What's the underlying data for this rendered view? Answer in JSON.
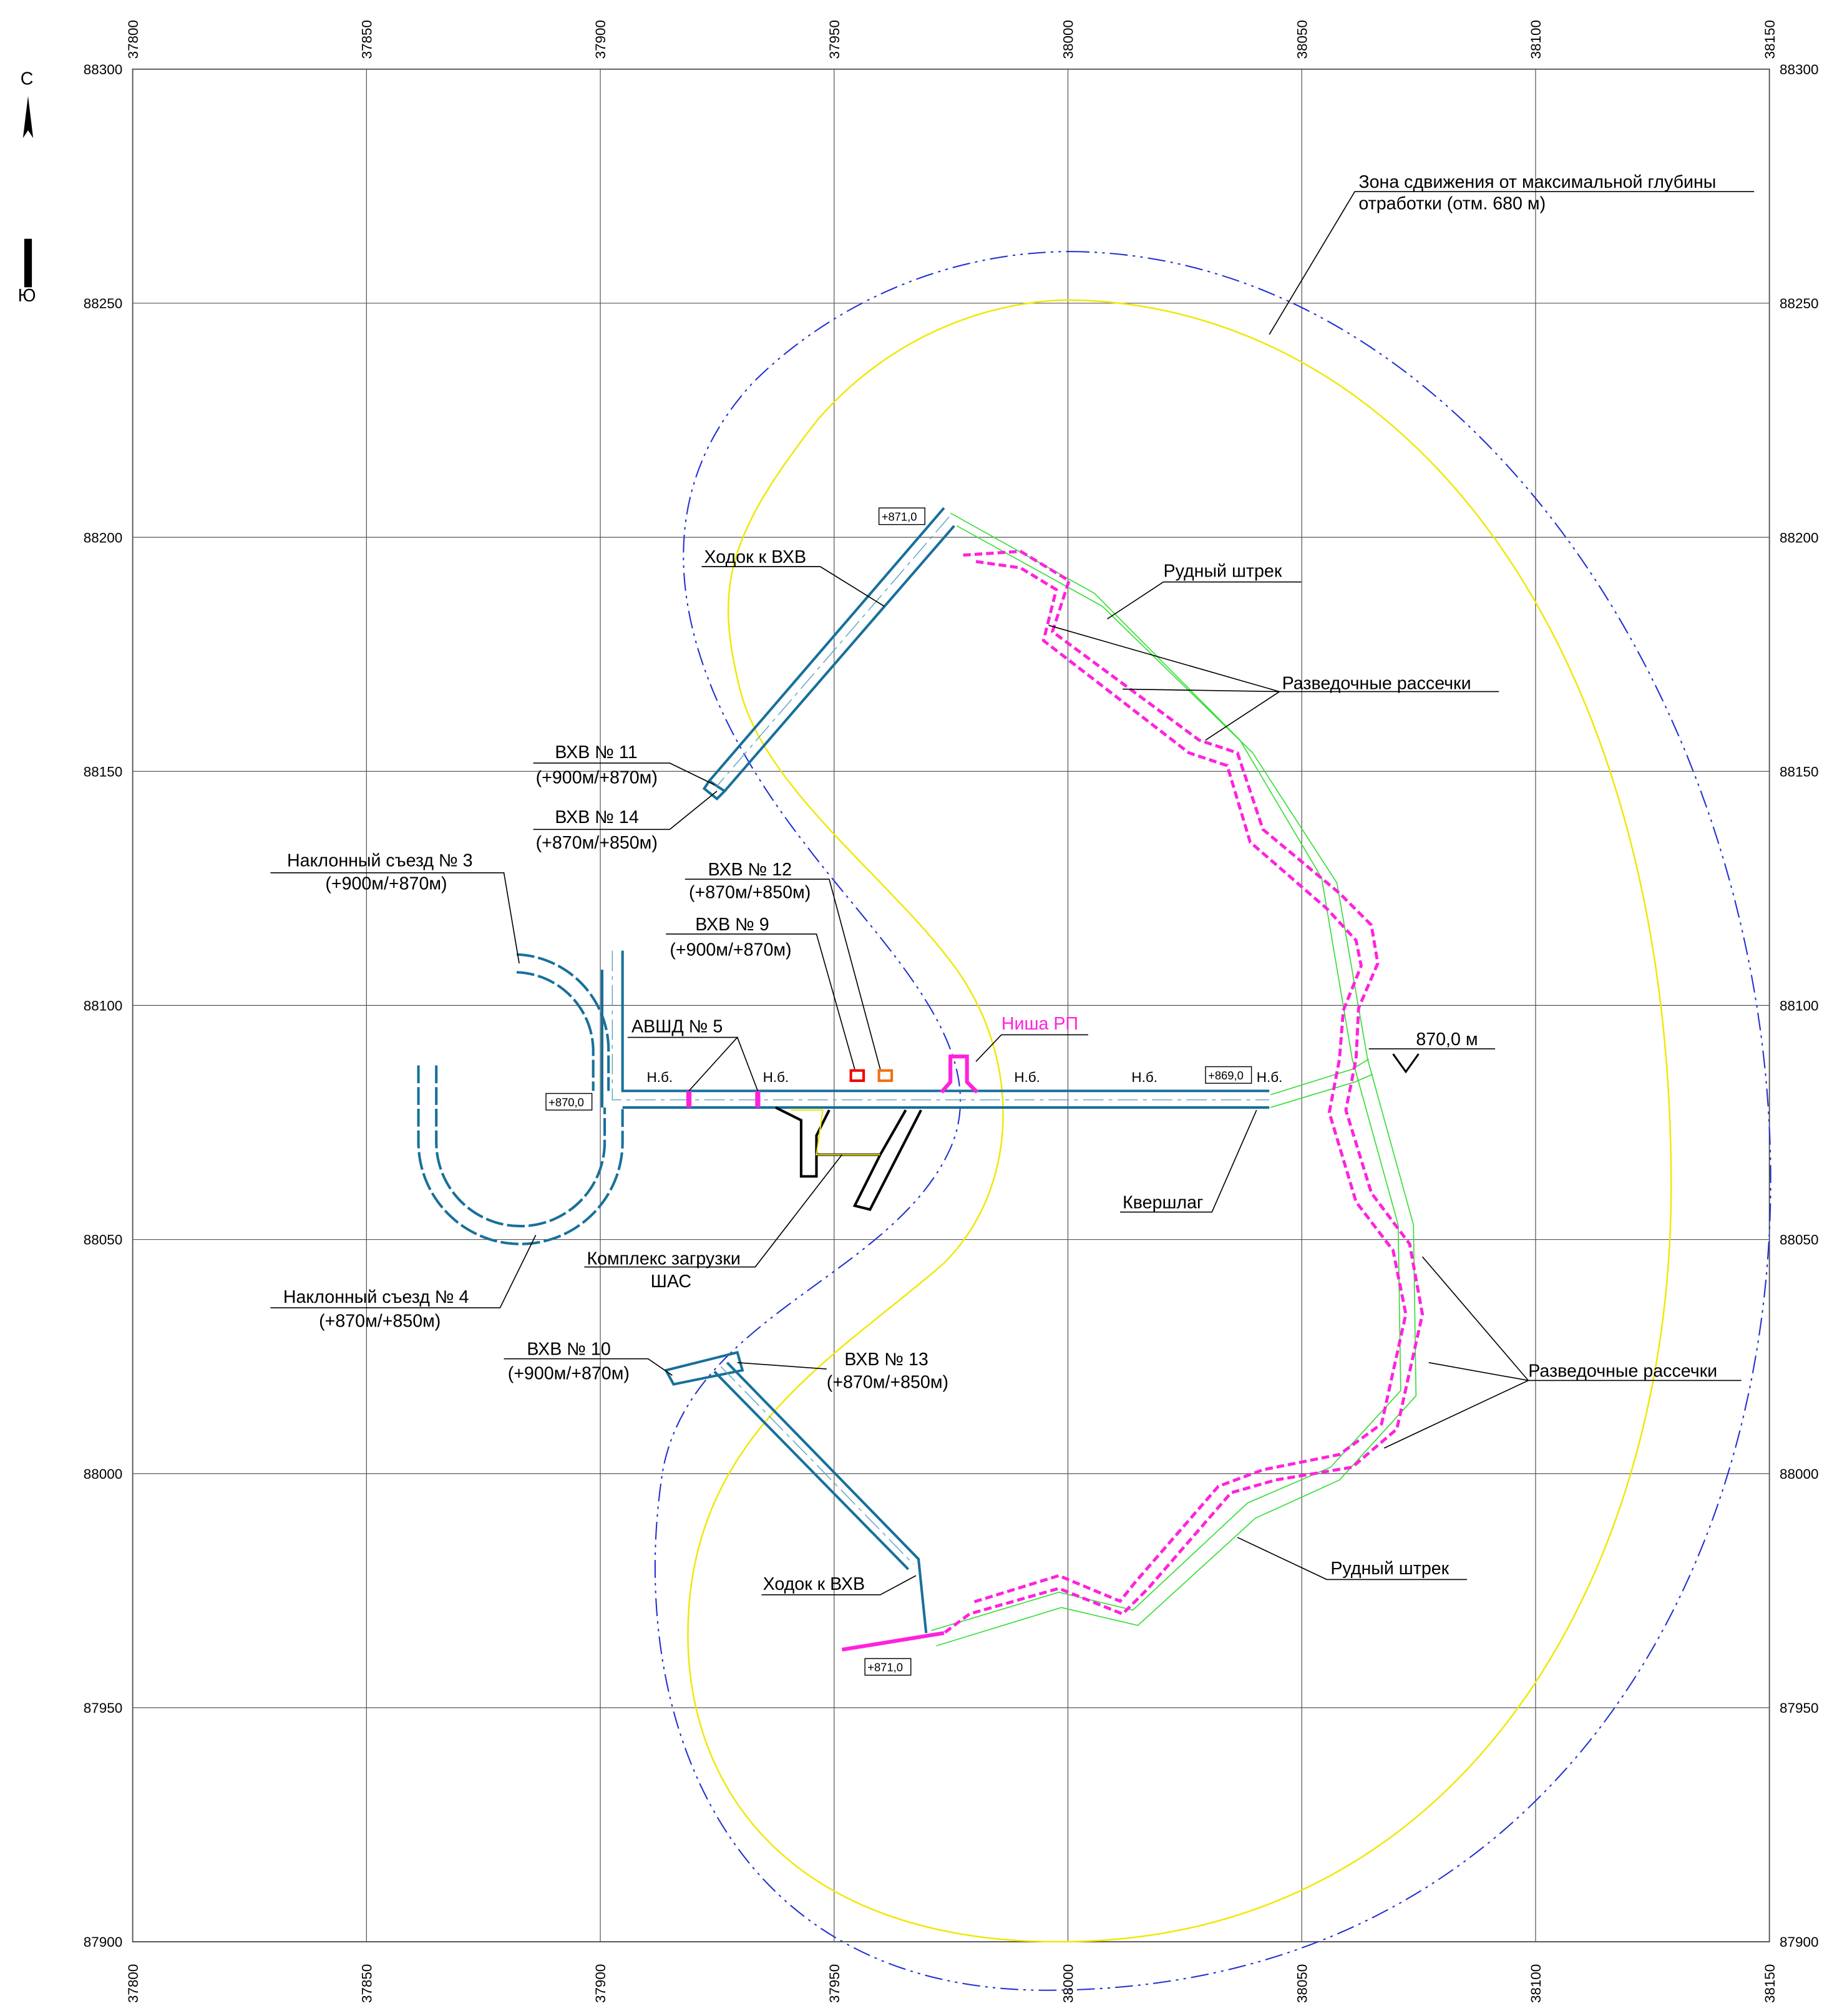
{
  "axes": {
    "xlim": [
      37800,
      38150
    ],
    "ylim": [
      87900,
      88300
    ],
    "xticks": [
      37800,
      37850,
      37900,
      37950,
      38000,
      38050,
      38100,
      38150
    ],
    "yticks": [
      88300,
      88250,
      88200,
      88150,
      88100,
      88050,
      88000,
      87950,
      87900
    ]
  },
  "north": {
    "n": "С",
    "s": "Ю"
  },
  "labels": [
    "Зона сдвижения от максимальной глубины",
    "отработки (отм. 680 м)",
    "Ходок к ВХВ",
    "Рудный штрек",
    "Разведочные рассечки",
    "ВХВ № 11",
    "(+900м/+870м)",
    "ВХВ № 14",
    "(+870м/+850м)",
    "Наклонный съезд № 3",
    "(+900м/+870м)",
    "ВХВ № 12",
    "(+870м/+850м)",
    "ВХВ № 9",
    "(+900м/+870м)",
    "АВШД № 5",
    "Ниша РП",
    "870,0 м",
    "Квершлаг",
    "Комплекс загрузки",
    "ШАС",
    "Наклонный съезд № 4",
    "(+870м/+850м)",
    "ВХВ № 10",
    "(+900м/+870м)",
    "ВХВ № 13",
    "(+870м/+850м)",
    "Разведочные рассечки",
    "Рудный штрек",
    "Ходок к ВХВ"
  ],
  "tags": [
    "+871,0",
    "+870,0",
    "+869,0",
    "+871,0"
  ],
  "nb": "Н.б."
}
